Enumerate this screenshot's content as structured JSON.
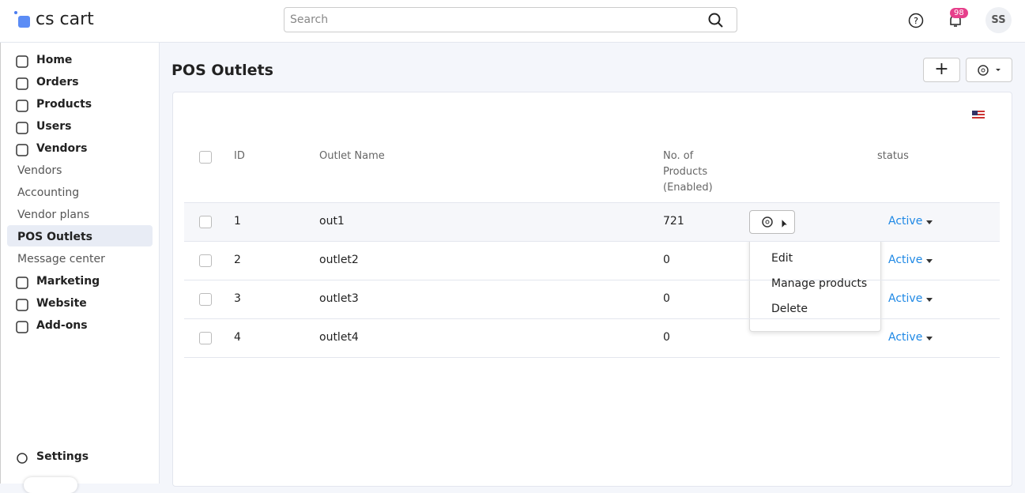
{
  "header": {
    "logo": "cs cart",
    "search_placeholder": "Search",
    "notifications": "98",
    "avatar": "SS"
  },
  "sidebar": {
    "items": [
      "Home",
      "Orders",
      "Products",
      "Users",
      "Vendors",
      "Vendors",
      "Accounting",
      "Vendor plans",
      "POS Outlets",
      "Message center",
      "Marketing",
      "Website",
      "Add-ons"
    ],
    "settings": "Settings"
  },
  "page": {
    "title": "POS Outlets"
  },
  "table": {
    "columns": [
      "ID",
      "Outlet Name",
      "No. of Products (Enabled)",
      "status"
    ],
    "rows": [
      [
        "1",
        "out1",
        "721",
        "Active"
      ],
      [
        "2",
        "outlet2",
        "0",
        "Active"
      ],
      [
        "3",
        "outlet3",
        "0",
        "Active"
      ],
      [
        "4",
        "outlet4",
        "0",
        "Active"
      ]
    ]
  },
  "dropdown": {
    "items": [
      "Edit",
      "Manage products",
      "Delete"
    ]
  }
}
